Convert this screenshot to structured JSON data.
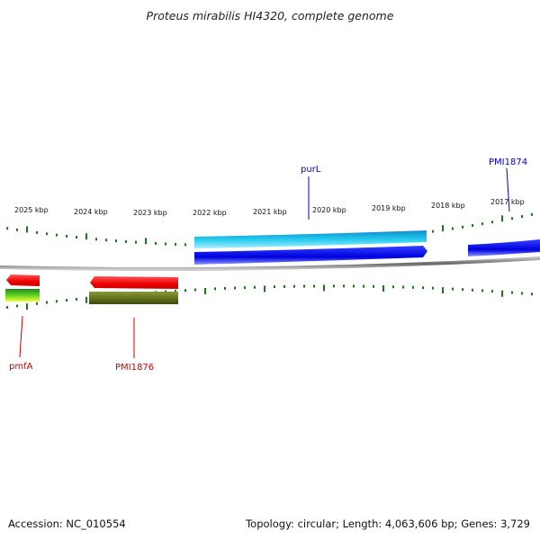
{
  "title": "Proteus mirabilis HI4320, complete genome",
  "footer": {
    "accession": "Accession: NC_010554",
    "summary": "Topology: circular; Length: 4,063,606 bp; Genes: 3,729"
  },
  "ruler": {
    "labels": [
      "2025 kbp",
      "2024 kbp",
      "2023 kbp",
      "2022 kbp",
      "2021 kbp",
      "2020 kbp",
      "2019 kbp",
      "2018 kbp",
      "2017 kbp"
    ]
  },
  "genes": [
    {
      "label": "purL",
      "color": "#0000cc"
    },
    {
      "label": "PMI1874",
      "color": "#0000cc"
    },
    {
      "label": "pmfA",
      "color": "#cc0000"
    },
    {
      "label": "PMI1876",
      "color": "#cc0000"
    }
  ],
  "colors": {
    "backbone": "#888888",
    "tick": "#1a7a1a",
    "forward_cds": "#0000ee",
    "forward_gene": "#22bbee",
    "reverse_cds": "#ee0000",
    "reverse_gene": "#6b7a1e",
    "pmfA_track": "#55cc22"
  }
}
